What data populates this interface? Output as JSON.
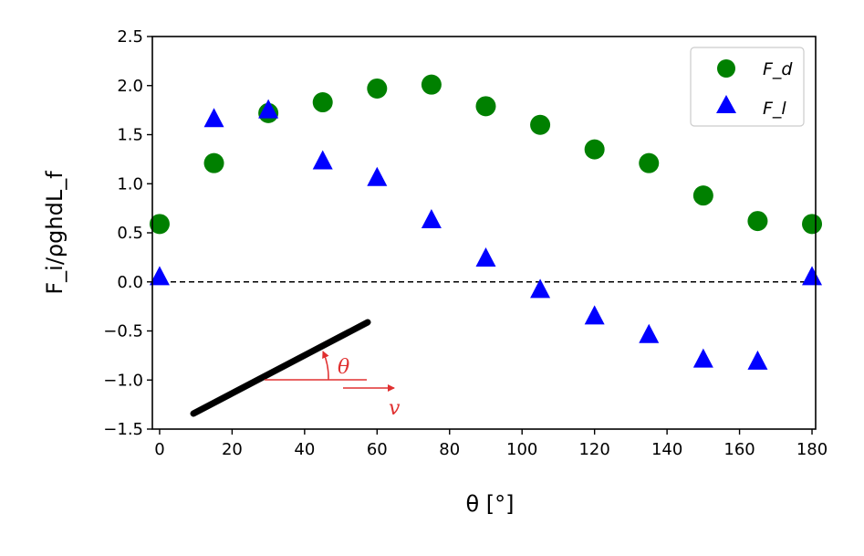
{
  "chart_data": {
    "type": "scatter",
    "x_label": "θ [°]",
    "y_label": "F_i/ρghdL_f",
    "xlim": [
      -2,
      181
    ],
    "ylim": [
      -1.5,
      2.5
    ],
    "x_ticks": [
      0,
      20,
      40,
      60,
      80,
      100,
      120,
      140,
      160,
      180
    ],
    "y_ticks": [
      -1.5,
      -1.0,
      -0.5,
      0.0,
      0.5,
      1.0,
      1.5,
      2.0,
      2.5
    ],
    "x_tick_labels": [
      "0",
      "20",
      "40",
      "60",
      "80",
      "100",
      "120",
      "140",
      "160",
      "180"
    ],
    "y_tick_labels": [
      "−1.5",
      "−1.0",
      "−0.5",
      "0.0",
      "0.5",
      "1.0",
      "1.5",
      "2.0",
      "2.5"
    ],
    "grid": false,
    "legend_position": "top-right",
    "reference_line": {
      "y": 0,
      "style": "dashed",
      "color": "#000000"
    },
    "series": [
      {
        "name": "F_d",
        "marker": "circle",
        "color": "#008000",
        "x": [
          0,
          15,
          30,
          45,
          60,
          75,
          90,
          105,
          120,
          135,
          150,
          165,
          180
        ],
        "y": [
          0.59,
          1.21,
          1.72,
          1.83,
          1.97,
          2.01,
          1.79,
          1.6,
          1.35,
          1.21,
          0.88,
          0.62,
          0.59
        ]
      },
      {
        "name": "F_l",
        "marker": "triangle",
        "color": "#0000ff",
        "x": [
          0,
          15,
          30,
          45,
          60,
          75,
          90,
          105,
          120,
          135,
          150,
          165,
          180
        ],
        "y": [
          0.05,
          1.66,
          1.75,
          1.23,
          1.06,
          0.63,
          0.24,
          -0.08,
          -0.35,
          -0.54,
          -0.79,
          -0.81,
          0.05
        ]
      }
    ],
    "annotation": {
      "angle_symbol": "θ",
      "velocity_symbol": "v",
      "plate_color": "#000000",
      "arrow_color": "#e03030"
    }
  }
}
